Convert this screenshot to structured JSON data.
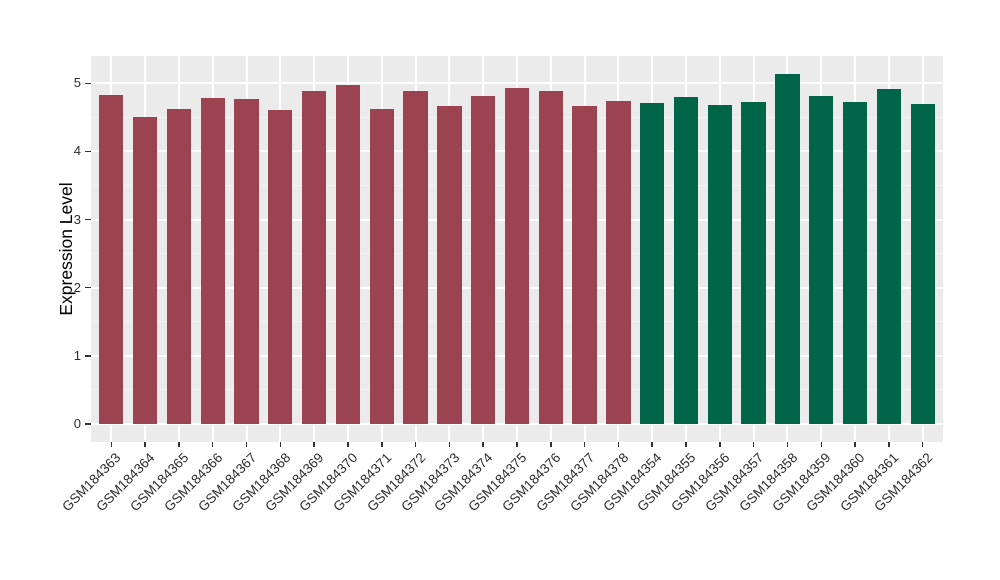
{
  "chart_data": {
    "type": "bar",
    "title": "",
    "xlabel": "",
    "ylabel": "Expression Level",
    "ylim": [
      0,
      5.4
    ],
    "yticks": [
      "0",
      "1",
      "2",
      "3",
      "4",
      "5"
    ],
    "grid": "on",
    "legend_position": "none",
    "categories": [
      "GSM184363",
      "GSM184364",
      "GSM184365",
      "GSM184366",
      "GSM184367",
      "GSM184368",
      "GSM184369",
      "GSM184370",
      "GSM184371",
      "GSM184372",
      "GSM184373",
      "GSM184374",
      "GSM184375",
      "GSM184376",
      "GSM184377",
      "GSM184378",
      "GSM184354",
      "GSM184355",
      "GSM184356",
      "GSM184357",
      "GSM184358",
      "GSM184359",
      "GSM184360",
      "GSM184361",
      "GSM184362"
    ],
    "values": [
      4.83,
      4.5,
      4.62,
      4.78,
      4.77,
      4.61,
      4.88,
      4.97,
      4.62,
      4.89,
      4.67,
      4.82,
      4.93,
      4.89,
      4.67,
      4.74,
      4.71,
      4.8,
      4.68,
      4.73,
      5.13,
      4.82,
      4.73,
      4.91,
      4.7
    ],
    "groups": [
      "maroon",
      "maroon",
      "maroon",
      "maroon",
      "maroon",
      "maroon",
      "maroon",
      "maroon",
      "maroon",
      "maroon",
      "maroon",
      "maroon",
      "maroon",
      "maroon",
      "maroon",
      "maroon",
      "green",
      "green",
      "green",
      "green",
      "green",
      "green",
      "green",
      "green",
      "green"
    ],
    "group_colors": {
      "maroon": "#9C4352",
      "green": "#016547"
    },
    "panel_bg": "#EBEBEB",
    "grid_major_color": "#FFFFFF",
    "grid_minor_color": "#F3F3F3",
    "axis_text_color": "#2E2E2E",
    "tick_mark_color": "#333333"
  }
}
